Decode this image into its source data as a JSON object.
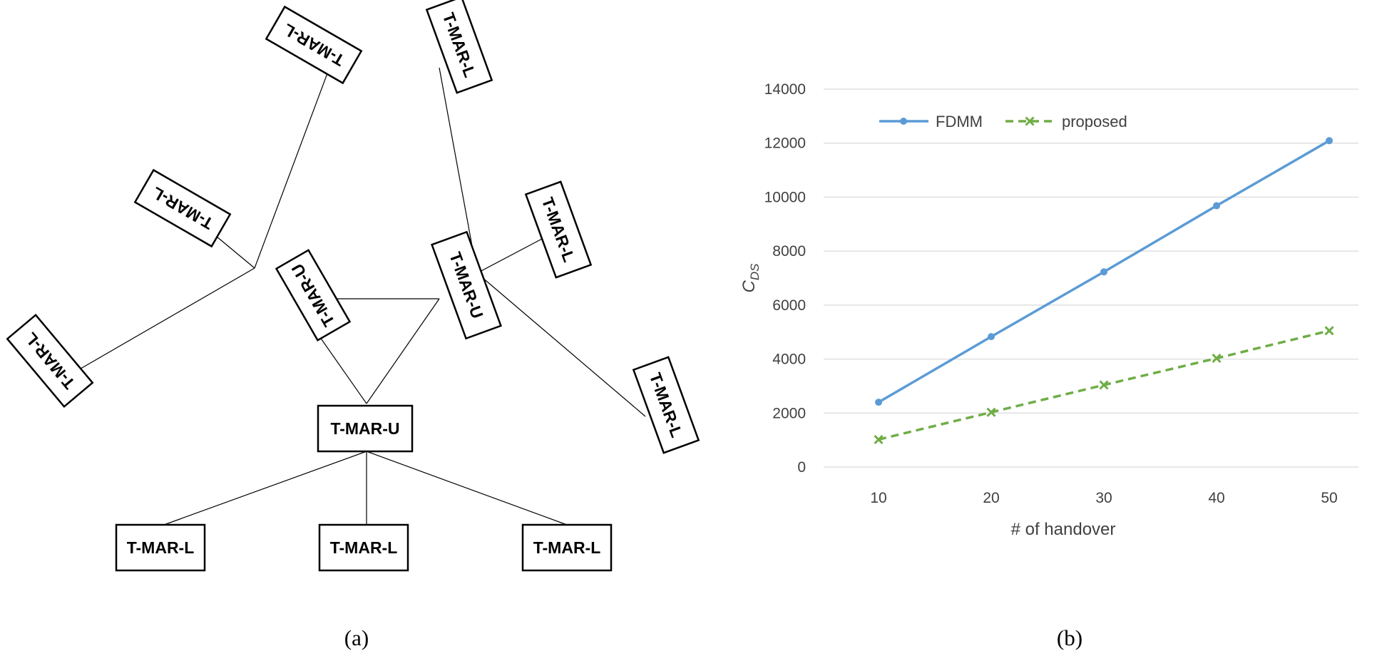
{
  "diagram": {
    "caption": "(a)",
    "node_label_upper": "T-MAR-U",
    "node_label_lower": "T-MAR-L"
  },
  "colors": {
    "fdmm": "#5b9bd5",
    "proposed": "#70ad47",
    "grid": "#d9d9d9"
  },
  "chart_data": {
    "type": "line",
    "caption": "(b)",
    "xlabel": "# of handover",
    "ylabel_main": "C",
    "ylabel_sub": "DS",
    "categories": [
      10,
      20,
      30,
      40,
      50
    ],
    "ylim": [
      0,
      14000
    ],
    "yticks": [
      0,
      2000,
      4000,
      6000,
      8000,
      10000,
      12000,
      14000
    ],
    "grid": true,
    "legend_position": "top-left",
    "series": [
      {
        "name": "FDMM",
        "values": [
          2400,
          4830,
          7230,
          9680,
          12090
        ],
        "marker": "circle",
        "line": "solid"
      },
      {
        "name": "proposed",
        "values": [
          1020,
          2030,
          3040,
          4030,
          5050
        ],
        "marker": "x",
        "line": "dashed"
      }
    ]
  }
}
